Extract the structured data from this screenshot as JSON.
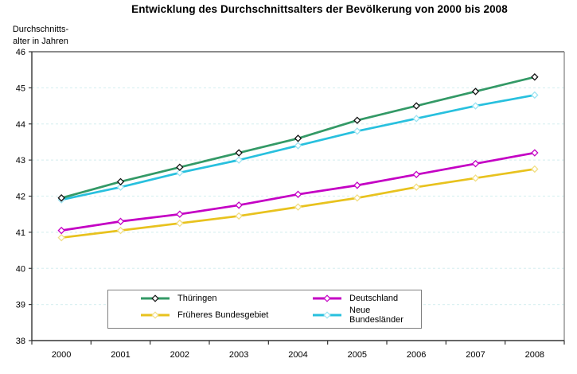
{
  "title": "Entwicklung des Durchschnittsalters der Bevölkerung von 2000 bis 2008",
  "y_axis_label_line1": "Durchschnitts-",
  "y_axis_label_line2": "alter in Jahren",
  "chart_data": {
    "type": "line",
    "title": "Entwicklung des Durchschnittsalters der Bevölkerung von 2000 bis 2008",
    "xlabel": "",
    "ylabel": "Durchschnitts- alter in Jahren",
    "categories": [
      "2000",
      "2001",
      "2002",
      "2003",
      "2004",
      "2005",
      "2006",
      "2007",
      "2008"
    ],
    "ylim": [
      38,
      46
    ],
    "yticks": [
      38,
      39,
      40,
      41,
      42,
      43,
      44,
      45,
      46
    ],
    "grid": "horizontal-dashed",
    "gridline_color": "#dbf1f2",
    "axis_color": "#333333",
    "border_top_color": "#666666",
    "border_right_color": "#909090",
    "legend_position": "bottom-center-inside-box",
    "legend_border_color": "#808080",
    "series": [
      {
        "name": "Thüringen",
        "slug": "thueringen",
        "color": "#339966",
        "marker_stroke": "#111111",
        "values": [
          41.95,
          42.4,
          42.8,
          43.2,
          43.6,
          44.1,
          44.5,
          44.9,
          45.3
        ]
      },
      {
        "name": "Deutschland",
        "slug": "deutschland",
        "color": "#c400c4",
        "marker_stroke": "#c400c4",
        "values": [
          41.05,
          41.3,
          41.5,
          41.75,
          42.05,
          42.3,
          42.6,
          42.9,
          43.2
        ]
      },
      {
        "name": "Früheres Bundesgebiet",
        "slug": "frueheres-bundesgebiet",
        "color": "#e8c21e",
        "marker_stroke": "#f2df85",
        "values": [
          40.85,
          41.05,
          41.25,
          41.45,
          41.7,
          41.95,
          42.25,
          42.5,
          42.75
        ]
      },
      {
        "name": "Neue Bundesländer",
        "slug": "neue-bundeslaender",
        "color": "#28c0de",
        "marker_stroke": "#9ce4f2",
        "values": [
          41.9,
          42.25,
          42.65,
          43.0,
          43.4,
          43.8,
          44.15,
          44.5,
          44.8
        ]
      }
    ]
  }
}
